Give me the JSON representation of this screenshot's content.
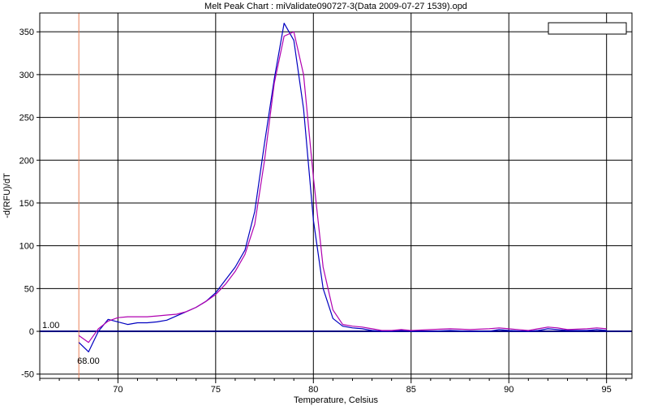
{
  "chart_data": {
    "type": "line",
    "title": "Melt Peak Chart : miValidate090727-3(Data 2009-07-27 1539).opd",
    "xlabel": "Temperature, Celsius",
    "ylabel": "-d(RFU)/dT",
    "xlim": [
      66.0,
      96.3
    ],
    "ylim": [
      -55,
      372
    ],
    "xticks": [
      70,
      75,
      80,
      85,
      90,
      95
    ],
    "yticks": [
      -50,
      0,
      50,
      100,
      150,
      200,
      250,
      300,
      350
    ],
    "grid": true,
    "legend": "top-right",
    "threshold": {
      "value": 0,
      "label": "1.00",
      "color": "#000080"
    },
    "cursor": {
      "x": 68.0,
      "label": "68.00",
      "color": "#e8805a"
    },
    "series": [
      {
        "color": "#0000c0",
        "x": [
          68.0,
          68.5,
          69.0,
          69.5,
          70.0,
          70.5,
          71.0,
          71.5,
          72.0,
          72.5,
          73.0,
          73.5,
          74.0,
          74.5,
          75.0,
          75.5,
          76.0,
          76.5,
          77.0,
          77.5,
          78.0,
          78.5,
          79.0,
          79.5,
          80.0,
          80.5,
          81.0,
          81.5,
          82.0,
          82.5,
          83.0,
          83.5,
          84.0,
          84.5,
          85.0,
          86.0,
          87.0,
          88.0,
          89.0,
          89.5,
          90.0,
          91.0,
          91.5,
          92.0,
          92.5,
          93.0,
          94.0,
          94.5,
          95.0
        ],
        "y": [
          -13,
          -24,
          0,
          14,
          11,
          8,
          10,
          10,
          11,
          13,
          18,
          23,
          28,
          35,
          45,
          60,
          75,
          95,
          140,
          220,
          295,
          360,
          340,
          260,
          130,
          50,
          15,
          6,
          4,
          3,
          1,
          0,
          0,
          1,
          0,
          0,
          1,
          0,
          0,
          2,
          1,
          0,
          1,
          3,
          2,
          1,
          1,
          2,
          1
        ]
      },
      {
        "color": "#b000b0",
        "x": [
          68.0,
          68.5,
          69.0,
          69.5,
          70.0,
          70.5,
          71.0,
          71.5,
          72.0,
          72.5,
          73.0,
          73.5,
          74.0,
          74.5,
          75.0,
          75.5,
          76.0,
          76.5,
          77.0,
          77.5,
          78.0,
          78.5,
          79.0,
          79.5,
          80.0,
          80.5,
          81.0,
          81.5,
          82.0,
          82.5,
          83.0,
          83.5,
          84.0,
          84.5,
          85.0,
          86.0,
          87.0,
          88.0,
          89.0,
          89.5,
          90.0,
          91.0,
          91.5,
          92.0,
          92.5,
          93.0,
          94.0,
          94.5,
          95.0
        ],
        "y": [
          -5,
          -13,
          3,
          12,
          16,
          17,
          17,
          17,
          18,
          19,
          20,
          23,
          28,
          35,
          43,
          55,
          70,
          90,
          125,
          200,
          290,
          345,
          350,
          300,
          180,
          75,
          25,
          8,
          6,
          5,
          3,
          1,
          1,
          2,
          1,
          2,
          3,
          2,
          3,
          4,
          3,
          1,
          3,
          5,
          4,
          2,
          3,
          4,
          3
        ]
      }
    ]
  }
}
